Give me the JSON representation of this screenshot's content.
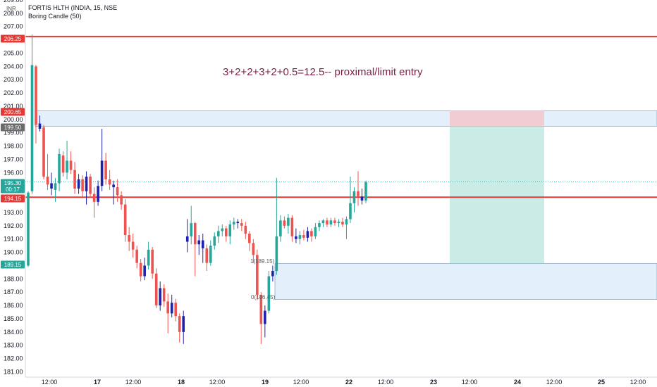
{
  "legend": {
    "symbol": "FORTIS HLTH (INDIA, 15, NSE",
    "indicator": "Boring Candle (50)"
  },
  "axis_currency": "INR",
  "annotation": "3+2+2+3+2+0.5=12.5-- proximal/limit entry",
  "fib_labels": {
    "one": "1(189.15)",
    "zero": "0(186.45)"
  },
  "colors": {
    "up": "#26a69a",
    "down": "#ef5350",
    "boring": "#1e22aa",
    "level_line": "#e53935",
    "zone_fill": "#dcecfb",
    "zone_border": "#6c8fb2",
    "stop_fill": "#f5c6cb",
    "target_fill": "#a7ddd6"
  },
  "chart_data": {
    "type": "candlestick",
    "title": "FORTIS HLTH (INDIA, 15, NSE",
    "ylim": [
      180.6,
      209.0
    ],
    "y_ticks": [
      181.0,
      182.0,
      183.0,
      184.0,
      185.0,
      186.0,
      187.0,
      188.0,
      189.0,
      190.0,
      191.0,
      192.0,
      193.0,
      194.0,
      196.0,
      197.0,
      198.0,
      199.0,
      200.0,
      201.0,
      202.0,
      203.0,
      204.0,
      205.0,
      206.0,
      207.0,
      208.0,
      209.0
    ],
    "x_ticks": [
      "12:00",
      "17",
      "12:00",
      "18",
      "12:00",
      "19",
      "12:00",
      "22",
      "12:00",
      "23",
      "12:00",
      "24",
      "12:00",
      "25",
      "12:00"
    ],
    "horizontal_levels": [
      206.25,
      194.15
    ],
    "price_badges": [
      {
        "label": "206.25",
        "value": 206.25,
        "color": "#e53935"
      },
      {
        "label": "200.65",
        "value": 200.65,
        "color": "#e53935"
      },
      {
        "label": "199.50",
        "value": 199.5,
        "color": "#6b6b6b"
      },
      {
        "label": "195.30",
        "value": 195.3,
        "color": "#26a69a"
      },
      {
        "label": "00:17",
        "value": 194.8,
        "color": "#26a69a"
      },
      {
        "label": "194.15",
        "value": 194.15,
        "color": "#e53935"
      },
      {
        "label": "189.15",
        "value": 189.15,
        "color": "#26a69a"
      }
    ],
    "zones": [
      {
        "name": "supply-zone",
        "top": 200.65,
        "bottom": 199.5
      },
      {
        "name": "demand-zone",
        "top": 189.15,
        "bottom": 186.45
      }
    ],
    "position": {
      "entry": 199.5,
      "stop": 200.65,
      "target": 189.15
    },
    "candles": [
      {
        "o": 189.0,
        "h": 194.6,
        "l": 188.9,
        "c": 194.5,
        "t": "up"
      },
      {
        "o": 194.6,
        "h": 206.4,
        "l": 194.4,
        "c": 204.1,
        "t": "up"
      },
      {
        "o": 204.0,
        "h": 204.1,
        "l": 198.2,
        "c": 199.6,
        "t": "down"
      },
      {
        "o": 199.7,
        "h": 200.3,
        "l": 199.1,
        "c": 199.3,
        "t": "boring"
      },
      {
        "o": 199.4,
        "h": 199.6,
        "l": 195.5,
        "c": 195.7,
        "t": "down"
      },
      {
        "o": 195.7,
        "h": 197.4,
        "l": 194.7,
        "c": 195.1,
        "t": "down"
      },
      {
        "o": 195.2,
        "h": 196.0,
        "l": 194.3,
        "c": 194.8,
        "t": "boring"
      },
      {
        "o": 194.7,
        "h": 195.6,
        "l": 193.8,
        "c": 195.2,
        "t": "up"
      },
      {
        "o": 195.2,
        "h": 197.8,
        "l": 194.6,
        "c": 197.4,
        "t": "up"
      },
      {
        "o": 197.3,
        "h": 197.6,
        "l": 195.7,
        "c": 196.0,
        "t": "down"
      },
      {
        "o": 196.0,
        "h": 198.4,
        "l": 195.5,
        "c": 196.9,
        "t": "up"
      },
      {
        "o": 196.9,
        "h": 197.6,
        "l": 195.9,
        "c": 196.2,
        "t": "down"
      },
      {
        "o": 196.2,
        "h": 196.8,
        "l": 194.4,
        "c": 194.8,
        "t": "down"
      },
      {
        "o": 194.8,
        "h": 195.9,
        "l": 194.4,
        "c": 195.5,
        "t": "boring"
      },
      {
        "o": 195.5,
        "h": 195.8,
        "l": 194.2,
        "c": 194.6,
        "t": "down"
      },
      {
        "o": 194.6,
        "h": 196.1,
        "l": 193.6,
        "c": 195.7,
        "t": "boring"
      },
      {
        "o": 195.7,
        "h": 195.9,
        "l": 194.1,
        "c": 194.4,
        "t": "down"
      },
      {
        "o": 194.4,
        "h": 194.9,
        "l": 192.6,
        "c": 193.8,
        "t": "down"
      },
      {
        "o": 193.8,
        "h": 195.4,
        "l": 193.5,
        "c": 195.0,
        "t": "boring"
      },
      {
        "o": 195.0,
        "h": 199.3,
        "l": 194.6,
        "c": 196.9,
        "t": "boring"
      },
      {
        "o": 196.9,
        "h": 197.5,
        "l": 195.1,
        "c": 195.5,
        "t": "down"
      },
      {
        "o": 195.5,
        "h": 196.2,
        "l": 194.7,
        "c": 195.1,
        "t": "down"
      },
      {
        "o": 195.1,
        "h": 195.4,
        "l": 193.6,
        "c": 194.9,
        "t": "boring"
      },
      {
        "o": 194.9,
        "h": 195.5,
        "l": 193.8,
        "c": 194.3,
        "t": "down"
      },
      {
        "o": 194.3,
        "h": 194.6,
        "l": 193.2,
        "c": 193.6,
        "t": "down"
      },
      {
        "o": 193.6,
        "h": 194.0,
        "l": 190.8,
        "c": 191.3,
        "t": "down"
      },
      {
        "o": 191.3,
        "h": 191.9,
        "l": 190.1,
        "c": 190.8,
        "t": "down"
      },
      {
        "o": 190.8,
        "h": 191.4,
        "l": 189.6,
        "c": 190.2,
        "t": "down"
      },
      {
        "o": 190.2,
        "h": 190.5,
        "l": 188.8,
        "c": 189.2,
        "t": "down"
      },
      {
        "o": 189.2,
        "h": 189.5,
        "l": 187.8,
        "c": 188.2,
        "t": "down"
      },
      {
        "o": 188.2,
        "h": 189.6,
        "l": 187.9,
        "c": 189.0,
        "t": "boring"
      },
      {
        "o": 189.0,
        "h": 190.8,
        "l": 188.7,
        "c": 190.2,
        "t": "up"
      },
      {
        "o": 190.2,
        "h": 190.4,
        "l": 188.0,
        "c": 188.4,
        "t": "down"
      },
      {
        "o": 188.4,
        "h": 188.8,
        "l": 185.8,
        "c": 186.0,
        "t": "down"
      },
      {
        "o": 186.0,
        "h": 187.8,
        "l": 185.6,
        "c": 187.3,
        "t": "boring"
      },
      {
        "o": 187.3,
        "h": 187.6,
        "l": 185.9,
        "c": 186.3,
        "t": "down"
      },
      {
        "o": 186.3,
        "h": 186.9,
        "l": 183.9,
        "c": 185.4,
        "t": "down"
      },
      {
        "o": 185.4,
        "h": 186.8,
        "l": 185.1,
        "c": 186.2,
        "t": "boring"
      },
      {
        "o": 186.2,
        "h": 186.5,
        "l": 184.8,
        "c": 185.2,
        "t": "down"
      },
      {
        "o": 185.2,
        "h": 185.4,
        "l": 183.2,
        "c": 184.0,
        "t": "down"
      },
      {
        "o": 184.0,
        "h": 185.6,
        "l": 183.1,
        "c": 185.2,
        "t": "boring"
      },
      {
        "o": 190.8,
        "h": 192.5,
        "l": 190.0,
        "c": 191.2,
        "t": "boring"
      },
      {
        "o": 191.2,
        "h": 193.5,
        "l": 190.6,
        "c": 192.2,
        "t": "up"
      },
      {
        "o": 192.2,
        "h": 192.3,
        "l": 188.2,
        "c": 190.6,
        "t": "down"
      },
      {
        "o": 190.6,
        "h": 191.3,
        "l": 189.8,
        "c": 190.9,
        "t": "boring"
      },
      {
        "o": 190.9,
        "h": 191.4,
        "l": 189.2,
        "c": 190.3,
        "t": "boring"
      },
      {
        "o": 190.3,
        "h": 190.6,
        "l": 188.6,
        "c": 189.2,
        "t": "down"
      },
      {
        "o": 189.2,
        "h": 190.9,
        "l": 189.0,
        "c": 190.5,
        "t": "up"
      },
      {
        "o": 190.5,
        "h": 191.5,
        "l": 190.2,
        "c": 191.2,
        "t": "up"
      },
      {
        "o": 191.2,
        "h": 192.0,
        "l": 190.7,
        "c": 191.6,
        "t": "up"
      },
      {
        "o": 191.6,
        "h": 192.1,
        "l": 191.2,
        "c": 191.8,
        "t": "up"
      },
      {
        "o": 191.8,
        "h": 192.0,
        "l": 190.8,
        "c": 191.2,
        "t": "down"
      },
      {
        "o": 191.2,
        "h": 192.4,
        "l": 190.6,
        "c": 192.1,
        "t": "up"
      },
      {
        "o": 192.1,
        "h": 192.6,
        "l": 191.7,
        "c": 192.3,
        "t": "up"
      },
      {
        "o": 192.3,
        "h": 192.5,
        "l": 191.8,
        "c": 192.2,
        "t": "boring"
      },
      {
        "o": 192.2,
        "h": 192.5,
        "l": 191.6,
        "c": 192.0,
        "t": "down"
      },
      {
        "o": 192.0,
        "h": 192.3,
        "l": 191.0,
        "c": 191.4,
        "t": "down"
      },
      {
        "o": 191.4,
        "h": 191.6,
        "l": 190.1,
        "c": 190.7,
        "t": "down"
      },
      {
        "o": 190.7,
        "h": 191.0,
        "l": 189.2,
        "c": 189.8,
        "t": "down"
      },
      {
        "o": 189.8,
        "h": 190.2,
        "l": 186.4,
        "c": 186.8,
        "t": "down"
      },
      {
        "o": 186.8,
        "h": 187.0,
        "l": 183.1,
        "c": 184.6,
        "t": "down"
      },
      {
        "o": 184.6,
        "h": 186.0,
        "l": 183.6,
        "c": 185.6,
        "t": "boring"
      },
      {
        "o": 185.6,
        "h": 188.6,
        "l": 185.4,
        "c": 188.2,
        "t": "up"
      },
      {
        "o": 188.2,
        "h": 189.0,
        "l": 187.8,
        "c": 188.6,
        "t": "boring"
      },
      {
        "o": 188.6,
        "h": 195.6,
        "l": 188.3,
        "c": 191.2,
        "t": "up"
      },
      {
        "o": 191.2,
        "h": 192.8,
        "l": 190.8,
        "c": 192.4,
        "t": "up"
      },
      {
        "o": 192.4,
        "h": 192.7,
        "l": 191.8,
        "c": 192.0,
        "t": "down"
      },
      {
        "o": 192.0,
        "h": 192.9,
        "l": 191.4,
        "c": 192.6,
        "t": "up"
      },
      {
        "o": 192.6,
        "h": 192.8,
        "l": 190.8,
        "c": 191.2,
        "t": "down"
      },
      {
        "o": 191.2,
        "h": 191.8,
        "l": 190.7,
        "c": 191.0,
        "t": "boring"
      },
      {
        "o": 191.0,
        "h": 191.6,
        "l": 190.6,
        "c": 191.3,
        "t": "up"
      },
      {
        "o": 191.3,
        "h": 191.7,
        "l": 190.9,
        "c": 191.1,
        "t": "down"
      },
      {
        "o": 191.1,
        "h": 191.9,
        "l": 190.8,
        "c": 191.6,
        "t": "boring"
      },
      {
        "o": 191.6,
        "h": 191.8,
        "l": 190.8,
        "c": 191.2,
        "t": "down"
      },
      {
        "o": 191.2,
        "h": 192.2,
        "l": 191.0,
        "c": 191.9,
        "t": "up"
      },
      {
        "o": 191.9,
        "h": 192.4,
        "l": 191.6,
        "c": 192.2,
        "t": "up"
      },
      {
        "o": 192.2,
        "h": 192.5,
        "l": 191.9,
        "c": 192.4,
        "t": "up"
      },
      {
        "o": 192.4,
        "h": 192.6,
        "l": 191.9,
        "c": 192.1,
        "t": "down"
      },
      {
        "o": 192.1,
        "h": 192.6,
        "l": 191.9,
        "c": 192.4,
        "t": "up"
      },
      {
        "o": 192.4,
        "h": 192.6,
        "l": 192.0,
        "c": 192.2,
        "t": "down"
      },
      {
        "o": 192.2,
        "h": 192.5,
        "l": 191.9,
        "c": 192.3,
        "t": "up"
      },
      {
        "o": 192.3,
        "h": 192.6,
        "l": 191.9,
        "c": 192.1,
        "t": "down"
      },
      {
        "o": 192.1,
        "h": 192.7,
        "l": 191.0,
        "c": 192.5,
        "t": "up"
      },
      {
        "o": 192.5,
        "h": 195.7,
        "l": 192.2,
        "c": 193.7,
        "t": "up"
      },
      {
        "o": 193.7,
        "h": 194.9,
        "l": 193.0,
        "c": 194.6,
        "t": "up"
      },
      {
        "o": 194.6,
        "h": 196.1,
        "l": 193.5,
        "c": 194.2,
        "t": "down"
      },
      {
        "o": 194.2,
        "h": 194.8,
        "l": 193.6,
        "c": 193.9,
        "t": "boring"
      },
      {
        "o": 193.9,
        "h": 195.4,
        "l": 193.7,
        "c": 195.3,
        "t": "up"
      }
    ]
  }
}
